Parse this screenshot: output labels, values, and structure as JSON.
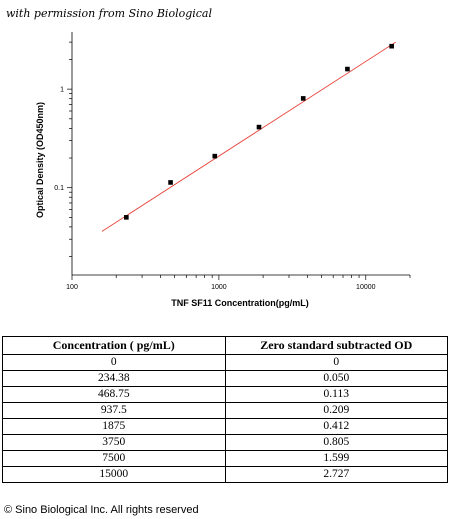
{
  "credit": "with permission from Sino Biological",
  "copyright": "© Sino Biological Inc. All rights reserved",
  "colors": {
    "fit_line": "#e8433a",
    "points": "#000000",
    "axis": "#000000"
  },
  "chart_data": {
    "type": "scatter",
    "xlabel": "TNF SF11  Concentration(pg/mL)",
    "ylabel": "Optical Density (OD450nm)",
    "x_scale": "log",
    "y_scale": "log",
    "xlim": [
      100,
      20000
    ],
    "ylim": [
      0.013,
      3.8
    ],
    "x_ticks": [
      100,
      1000,
      10000
    ],
    "x_tick_labels": [
      "100",
      "1000",
      "10000"
    ],
    "y_ticks": [
      0.1,
      1
    ],
    "y_tick_labels": [
      "0.1",
      "1"
    ],
    "grid": false,
    "points": [
      {
        "x": 234.38,
        "y": 0.05
      },
      {
        "x": 468.75,
        "y": 0.113
      },
      {
        "x": 937.5,
        "y": 0.209
      },
      {
        "x": 1875,
        "y": 0.412
      },
      {
        "x": 3750,
        "y": 0.805
      },
      {
        "x": 7500,
        "y": 1.599
      },
      {
        "x": 15000,
        "y": 2.727
      }
    ],
    "fit_line": {
      "x": [
        160,
        16000
      ],
      "y": [
        0.036,
        3.0
      ]
    }
  },
  "table": {
    "headers": [
      "Concentration ( pg/mL)",
      "Zero standard subtracted OD"
    ],
    "rows": [
      [
        "0",
        "0"
      ],
      [
        "234.38",
        "0.050"
      ],
      [
        "468.75",
        "0.113"
      ],
      [
        "937.5",
        "0.209"
      ],
      [
        "1875",
        "0.412"
      ],
      [
        "3750",
        "0.805"
      ],
      [
        "7500",
        "1.599"
      ],
      [
        "15000",
        "2.727"
      ]
    ]
  }
}
